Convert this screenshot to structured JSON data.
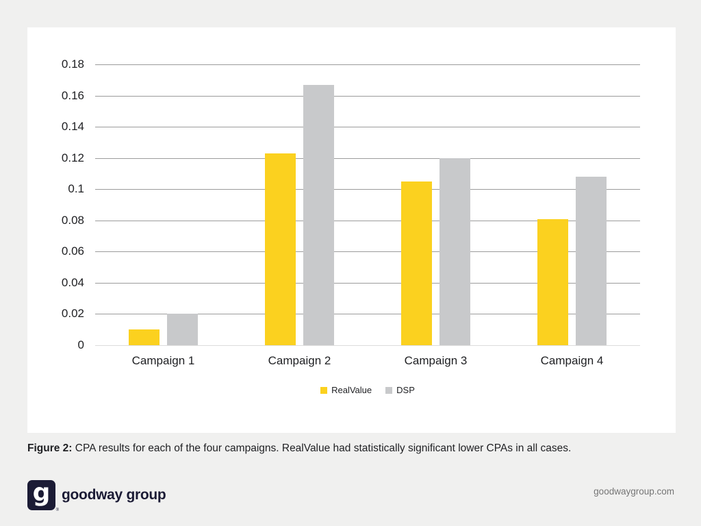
{
  "theme": {
    "page_background": "#f0f0ef",
    "card_background": "#ffffff",
    "gridline_color": "#9b9b9b",
    "baseline_color": "#dcdcdc",
    "text_color": "#202124",
    "brand_navy": "#1b1b35",
    "brand_yellow": "#fbd11f",
    "bar_gray": "#c8c9cb"
  },
  "chart_data": {
    "type": "bar",
    "title": "",
    "xlabel": "",
    "ylabel": "",
    "categories": [
      "Campaign 1",
      "Campaign 2",
      "Campaign 3",
      "Campaign 4"
    ],
    "series": [
      {
        "name": "RealValue",
        "color": "#fbd11f",
        "values": [
          0.01,
          0.123,
          0.105,
          0.081
        ]
      },
      {
        "name": "DSP",
        "color": "#c8c9cb",
        "values": [
          0.02,
          0.167,
          0.12,
          0.108
        ]
      }
    ],
    "ylim": [
      0,
      0.18
    ],
    "y_ticks": [
      {
        "value": 0.18,
        "label": "0.18"
      },
      {
        "value": 0.16,
        "label": "0.16"
      },
      {
        "value": 0.14,
        "label": "0.14"
      },
      {
        "value": 0.12,
        "label": "0.12"
      },
      {
        "value": 0.1,
        "label": "0.1"
      },
      {
        "value": 0.08,
        "label": "0.08"
      },
      {
        "value": 0.06,
        "label": "0.06"
      },
      {
        "value": 0.04,
        "label": "0.04"
      },
      {
        "value": 0.02,
        "label": "0.02"
      },
      {
        "value": 0.0,
        "label": "0"
      }
    ],
    "grid": true,
    "legend_position": "bottom-center"
  },
  "caption": {
    "label": "Figure 2:",
    "text": " CPA results for each of the four campaigns. RealValue had statistically significant lower CPAs in all cases."
  },
  "footer": {
    "logo_glyph": "g",
    "registered_mark": "®",
    "wordmark": "goodway group",
    "website": "goodwaygroup.com"
  }
}
